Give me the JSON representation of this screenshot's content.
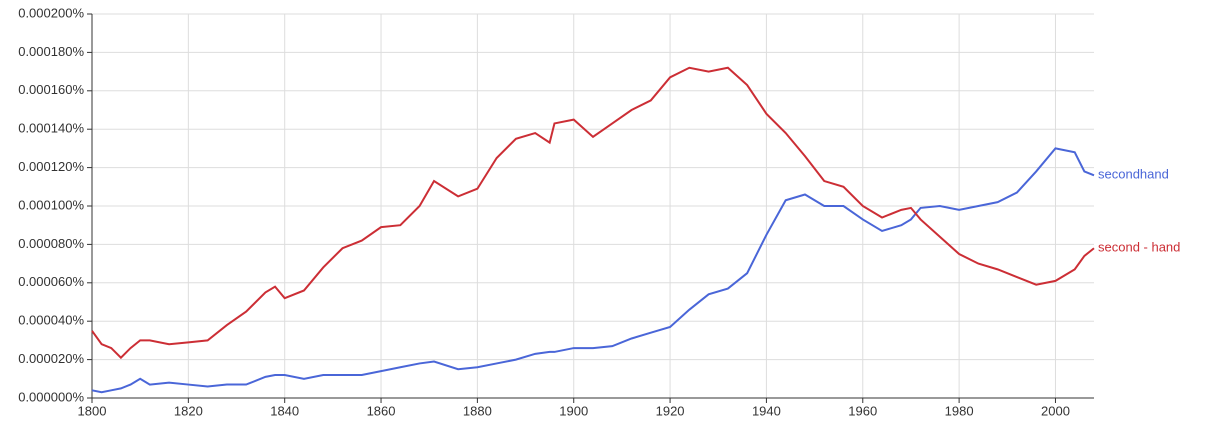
{
  "chart_data": {
    "type": "line",
    "x": [
      1800,
      1802,
      1804,
      1806,
      1808,
      1810,
      1812,
      1816,
      1820,
      1824,
      1828,
      1832,
      1836,
      1838,
      1840,
      1844,
      1848,
      1852,
      1856,
      1860,
      1864,
      1868,
      1871,
      1876,
      1880,
      1884,
      1888,
      1892,
      1895,
      1896,
      1900,
      1904,
      1908,
      1912,
      1916,
      1920,
      1924,
      1928,
      1932,
      1936,
      1940,
      1944,
      1948,
      1952,
      1956,
      1960,
      1964,
      1968,
      1970,
      1972,
      1976,
      1980,
      1984,
      1988,
      1992,
      1996,
      2000,
      2004,
      2006,
      2008
    ],
    "series": [
      {
        "name": "secondhand",
        "color": "#4a66d8",
        "values": [
          4e-06,
          3e-06,
          4e-06,
          5e-06,
          7e-06,
          1e-05,
          7e-06,
          8e-06,
          7e-06,
          6e-06,
          7e-06,
          7e-06,
          1.1e-05,
          1.2e-05,
          1.2e-05,
          1e-05,
          1.2e-05,
          1.2e-05,
          1.2e-05,
          1.4e-05,
          1.6e-05,
          1.8e-05,
          1.9e-05,
          1.5e-05,
          1.6e-05,
          1.8e-05,
          2e-05,
          2.3e-05,
          2.4e-05,
          2.4e-05,
          2.6e-05,
          2.6e-05,
          2.7e-05,
          3.1e-05,
          3.4e-05,
          3.7e-05,
          4.6e-05,
          5.4e-05,
          5.7e-05,
          6.5e-05,
          8.5e-05,
          0.000103,
          0.000106,
          0.0001,
          0.0001,
          9.3e-05,
          8.7e-05,
          9e-05,
          9.3e-05,
          9.9e-05,
          0.0001,
          9.8e-05,
          0.0001,
          0.000102,
          0.000107,
          0.000118,
          0.00013,
          0.000128,
          0.000118,
          0.000116
        ]
      },
      {
        "name": "second - hand",
        "color": "#cc2e35",
        "values": [
          3.5e-05,
          2.8e-05,
          2.6e-05,
          2.1e-05,
          2.6e-05,
          3e-05,
          3e-05,
          2.8e-05,
          2.9e-05,
          3e-05,
          3.8e-05,
          4.5e-05,
          5.5e-05,
          5.8e-05,
          5.2e-05,
          5.6e-05,
          6.8e-05,
          7.8e-05,
          8.2e-05,
          8.9e-05,
          9e-05,
          0.0001,
          0.000113,
          0.000105,
          0.000109,
          0.000125,
          0.000135,
          0.000138,
          0.000133,
          0.000143,
          0.000145,
          0.000136,
          0.000143,
          0.00015,
          0.000155,
          0.000167,
          0.000172,
          0.00017,
          0.000172,
          0.000163,
          0.000148,
          0.000138,
          0.000126,
          0.000113,
          0.00011,
          0.0001,
          9.4e-05,
          9.8e-05,
          9.9e-05,
          9.3e-05,
          8.4e-05,
          7.5e-05,
          7e-05,
          6.7e-05,
          6.3e-05,
          5.9e-05,
          6.1e-05,
          6.7e-05,
          7.4e-05,
          7.8e-05
        ]
      }
    ],
    "xlim": [
      1800,
      2008
    ],
    "xticks": [
      1800,
      1820,
      1840,
      1860,
      1880,
      1900,
      1920,
      1940,
      1960,
      1980,
      2000
    ],
    "ylim": [
      0,
      0.0002
    ],
    "yticks": [
      {
        "value": 0,
        "label": "0.000000%"
      },
      {
        "value": 2e-05,
        "label": "0.000020%"
      },
      {
        "value": 4e-05,
        "label": "0.000040%"
      },
      {
        "value": 6e-05,
        "label": "0.000060%"
      },
      {
        "value": 8e-05,
        "label": "0.000080%"
      },
      {
        "value": 0.0001,
        "label": "0.000100%"
      },
      {
        "value": 0.00012,
        "label": "0.000120%"
      },
      {
        "value": 0.00014,
        "label": "0.000140%"
      },
      {
        "value": 0.00016,
        "label": "0.000160%"
      },
      {
        "value": 0.00018,
        "label": "0.000180%"
      },
      {
        "value": 0.0002,
        "label": "0.000200%"
      }
    ],
    "grid": true
  }
}
